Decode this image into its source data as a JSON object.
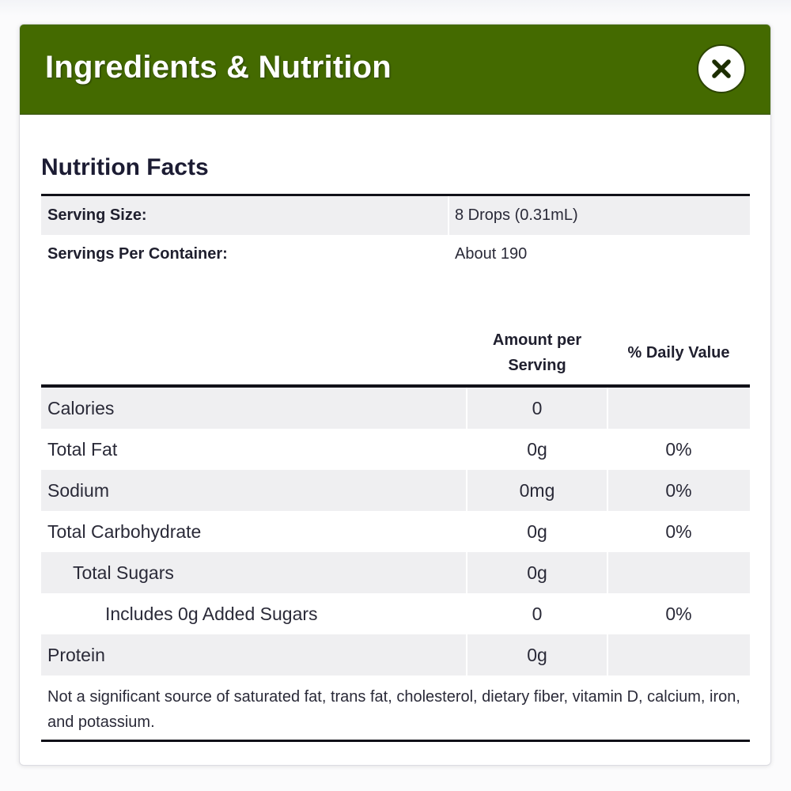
{
  "modal": {
    "title": "Ingredients & Nutrition",
    "close_icon": "close-x-icon",
    "header_color": "#446a00"
  },
  "nutrition": {
    "heading": "Nutrition Facts",
    "serving_size": {
      "label": "Serving Size:",
      "value": "8 Drops (0.31mL)"
    },
    "servings_per_container": {
      "label": "Servings Per Container:",
      "value": "About 190"
    },
    "columns": {
      "amount_line1": "Amount per",
      "amount_line2": "Serving",
      "daily_value": "% Daily Value"
    },
    "rows": [
      {
        "name": "Calories",
        "amount": "0",
        "dv": ""
      },
      {
        "name": "Total Fat",
        "amount": "0g",
        "dv": "0%"
      },
      {
        "name": "Sodium",
        "amount": "0mg",
        "dv": "0%"
      },
      {
        "name": "Total Carbohydrate",
        "amount": "0g",
        "dv": "0%"
      },
      {
        "name": "Total Sugars",
        "amount": "0g",
        "dv": ""
      },
      {
        "name": "Includes 0g Added Sugars",
        "amount": "0",
        "dv": "0%"
      },
      {
        "name": "Protein",
        "amount": "0g",
        "dv": ""
      }
    ],
    "footnote": "Not a significant source of saturated fat, trans fat, cholesterol, dietary fiber, vitamin D, calcium, iron, and potassium."
  }
}
